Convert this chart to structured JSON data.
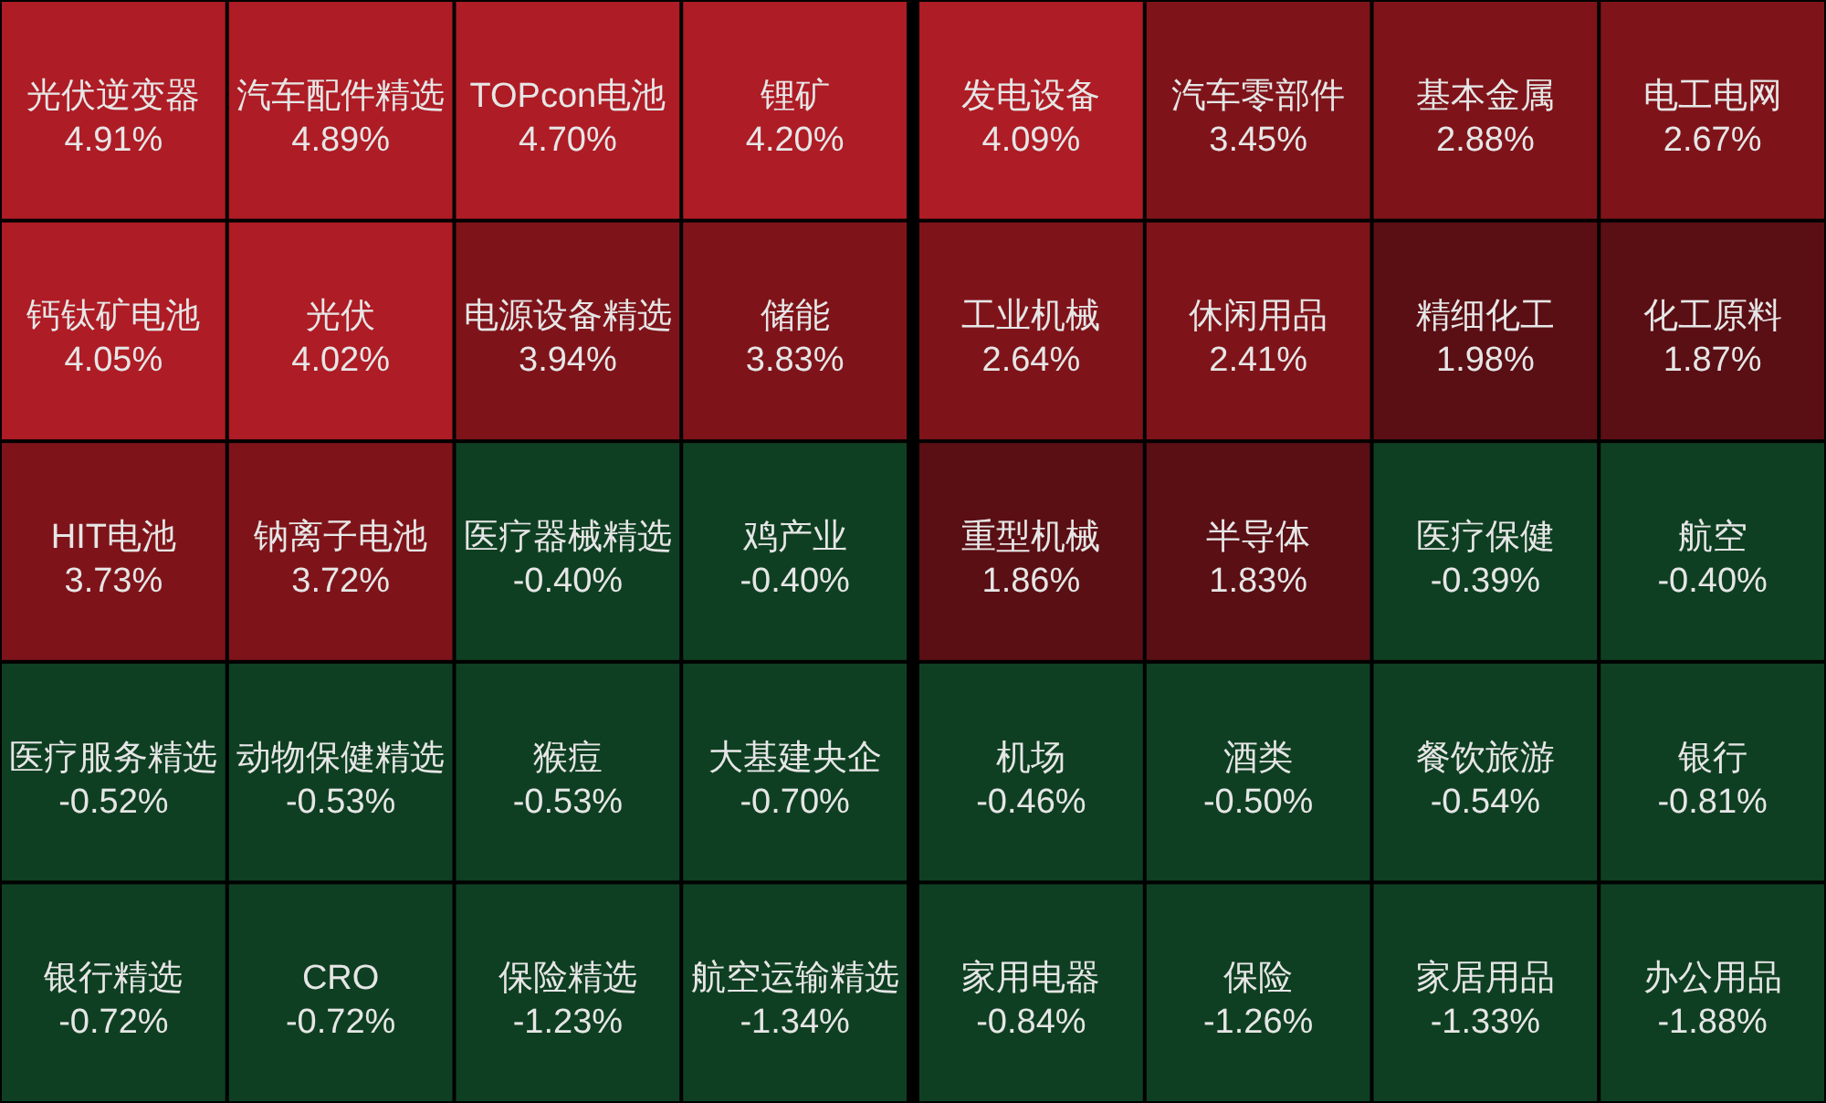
{
  "chart_data": [
    {
      "type": "other",
      "categories": [
        "光伏逆变器",
        "汽车配件精选",
        "TOPcon电池",
        "锂矿",
        "钙钛矿电池",
        "光伏",
        "电源设备精选",
        "储能",
        "HIT电池",
        "钠离子电池",
        "医疗器械精选",
        "鸡产业",
        "医疗服务精选",
        "动物保健精选",
        "猴痘",
        "大基建央企",
        "银行精选",
        "CRO",
        "保险精选",
        "航空运输精选"
      ],
      "values": [
        4.91,
        4.89,
        4.7,
        4.2,
        4.05,
        4.02,
        3.94,
        3.83,
        3.73,
        3.72,
        -0.4,
        -0.4,
        -0.52,
        -0.53,
        -0.53,
        -0.7,
        -0.72,
        -0.72,
        -1.23,
        -1.34
      ],
      "value_labels": [
        "4.91%",
        "4.89%",
        "4.70%",
        "4.20%",
        "4.05%",
        "4.02%",
        "3.94%",
        "3.83%",
        "3.73%",
        "3.72%",
        "-0.40%",
        "-0.40%",
        "-0.52%",
        "-0.53%",
        "-0.53%",
        "-0.70%",
        "-0.72%",
        "-0.72%",
        "-1.23%",
        "-1.34%"
      ],
      "colors": [
        "#ae1c25",
        "#ae1c25",
        "#ae1c25",
        "#ae1c25",
        "#ae1c25",
        "#ae1c25",
        "#7e141a",
        "#7e141a",
        "#7e141a",
        "#7e141a",
        "#0f3f22",
        "#0f3f22",
        "#0f3f22",
        "#0f3f22",
        "#0f3f22",
        "#0f3f22",
        "#0f3f22",
        "#0f3f22",
        "#0f3f22",
        "#0f3f22"
      ]
    },
    {
      "type": "other",
      "categories": [
        "发电设备",
        "汽车零部件",
        "基本金属",
        "电工电网",
        "工业机械",
        "休闲用品",
        "精细化工",
        "化工原料",
        "重型机械",
        "半导体",
        "医疗保健",
        "航空",
        "机场",
        "酒类",
        "餐饮旅游",
        "银行",
        "家用电器",
        "保险",
        "家居用品",
        "办公用品"
      ],
      "values": [
        4.09,
        3.45,
        2.88,
        2.67,
        2.64,
        2.41,
        1.98,
        1.87,
        1.86,
        1.83,
        -0.39,
        -0.4,
        -0.46,
        -0.5,
        -0.54,
        -0.81,
        -0.84,
        -1.26,
        -1.33,
        -1.88
      ],
      "value_labels": [
        "4.09%",
        "3.45%",
        "2.88%",
        "2.67%",
        "2.64%",
        "2.41%",
        "1.98%",
        "1.87%",
        "1.86%",
        "1.83%",
        "-0.39%",
        "-0.40%",
        "-0.46%",
        "-0.50%",
        "-0.54%",
        "-0.81%",
        "-0.84%",
        "-1.26%",
        "-1.33%",
        "-1.88%"
      ],
      "colors": [
        "#ae1c25",
        "#7e141a",
        "#7e141a",
        "#7e141a",
        "#7e141a",
        "#7e141a",
        "#5a0f14",
        "#5a0f14",
        "#5a0f14",
        "#5a0f14",
        "#0f3f22",
        "#0f3f22",
        "#0f3f22",
        "#0f3f22",
        "#0f3f22",
        "#0f3f22",
        "#0f3f22",
        "#0f3f22",
        "#0f3f22",
        "#0f3f22"
      ]
    }
  ]
}
